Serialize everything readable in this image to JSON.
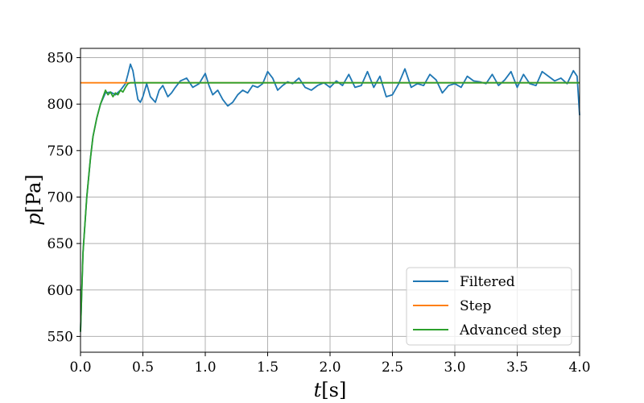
{
  "chart_data": {
    "type": "line",
    "title": "",
    "xlabel": "t[s]",
    "ylabel": "p[Pa]",
    "xlim": [
      0.0,
      4.0
    ],
    "ylim": [
      533,
      860
    ],
    "xticks": [
      "0.0",
      "0.5",
      "1.0",
      "1.5",
      "2.0",
      "2.5",
      "3.0",
      "3.5",
      "4.0"
    ],
    "yticks": [
      "550",
      "600",
      "650",
      "700",
      "750",
      "800",
      "850"
    ],
    "grid": true,
    "legend_position": "lower-right",
    "series": [
      {
        "name": "Filtered",
        "color": "#1f77b4",
        "x": [
          0.0,
          0.02,
          0.05,
          0.08,
          0.1,
          0.13,
          0.16,
          0.2,
          0.24,
          0.28,
          0.32,
          0.36,
          0.38,
          0.4,
          0.42,
          0.44,
          0.46,
          0.48,
          0.5,
          0.53,
          0.56,
          0.6,
          0.63,
          0.66,
          0.7,
          0.73,
          0.76,
          0.8,
          0.85,
          0.9,
          0.95,
          1.0,
          1.03,
          1.06,
          1.1,
          1.14,
          1.18,
          1.22,
          1.26,
          1.3,
          1.34,
          1.38,
          1.42,
          1.46,
          1.5,
          1.54,
          1.58,
          1.62,
          1.66,
          1.7,
          1.75,
          1.8,
          1.85,
          1.9,
          1.95,
          2.0,
          2.05,
          2.1,
          2.15,
          2.2,
          2.25,
          2.3,
          2.35,
          2.4,
          2.45,
          2.5,
          2.55,
          2.6,
          2.65,
          2.7,
          2.75,
          2.8,
          2.85,
          2.9,
          2.95,
          3.0,
          3.05,
          3.1,
          3.15,
          3.2,
          3.25,
          3.3,
          3.35,
          3.4,
          3.45,
          3.5,
          3.55,
          3.6,
          3.65,
          3.7,
          3.75,
          3.8,
          3.85,
          3.9,
          3.95,
          3.98,
          4.0
        ],
        "y": [
          555,
          640,
          700,
          742,
          765,
          785,
          800,
          812,
          813,
          810,
          815,
          822,
          832,
          843,
          836,
          820,
          805,
          802,
          808,
          822,
          808,
          802,
          815,
          820,
          808,
          812,
          818,
          825,
          828,
          818,
          822,
          833,
          820,
          810,
          815,
          805,
          798,
          802,
          810,
          815,
          812,
          820,
          818,
          822,
          835,
          828,
          815,
          820,
          824,
          822,
          828,
          818,
          815,
          820,
          823,
          818,
          825,
          820,
          832,
          818,
          820,
          835,
          818,
          830,
          808,
          810,
          822,
          838,
          818,
          822,
          820,
          832,
          826,
          812,
          820,
          822,
          818,
          830,
          825,
          824,
          822,
          832,
          820,
          826,
          835,
          818,
          832,
          822,
          820,
          835,
          830,
          825,
          828,
          822,
          836,
          830,
          788
        ]
      },
      {
        "name": "Step",
        "color": "#ff7f0e",
        "x": [
          0.0,
          4.0
        ],
        "y": [
          823,
          823
        ]
      },
      {
        "name": "Advanced step",
        "color": "#2ca02c",
        "x": [
          0.0,
          0.02,
          0.05,
          0.08,
          0.1,
          0.13,
          0.16,
          0.2,
          0.22,
          0.24,
          0.26,
          0.28,
          0.3,
          0.32,
          0.34,
          0.36,
          0.38,
          0.4,
          4.0
        ],
        "y": [
          555,
          640,
          700,
          742,
          765,
          785,
          800,
          815,
          810,
          813,
          808,
          812,
          810,
          815,
          813,
          818,
          822,
          823,
          823
        ]
      }
    ]
  }
}
